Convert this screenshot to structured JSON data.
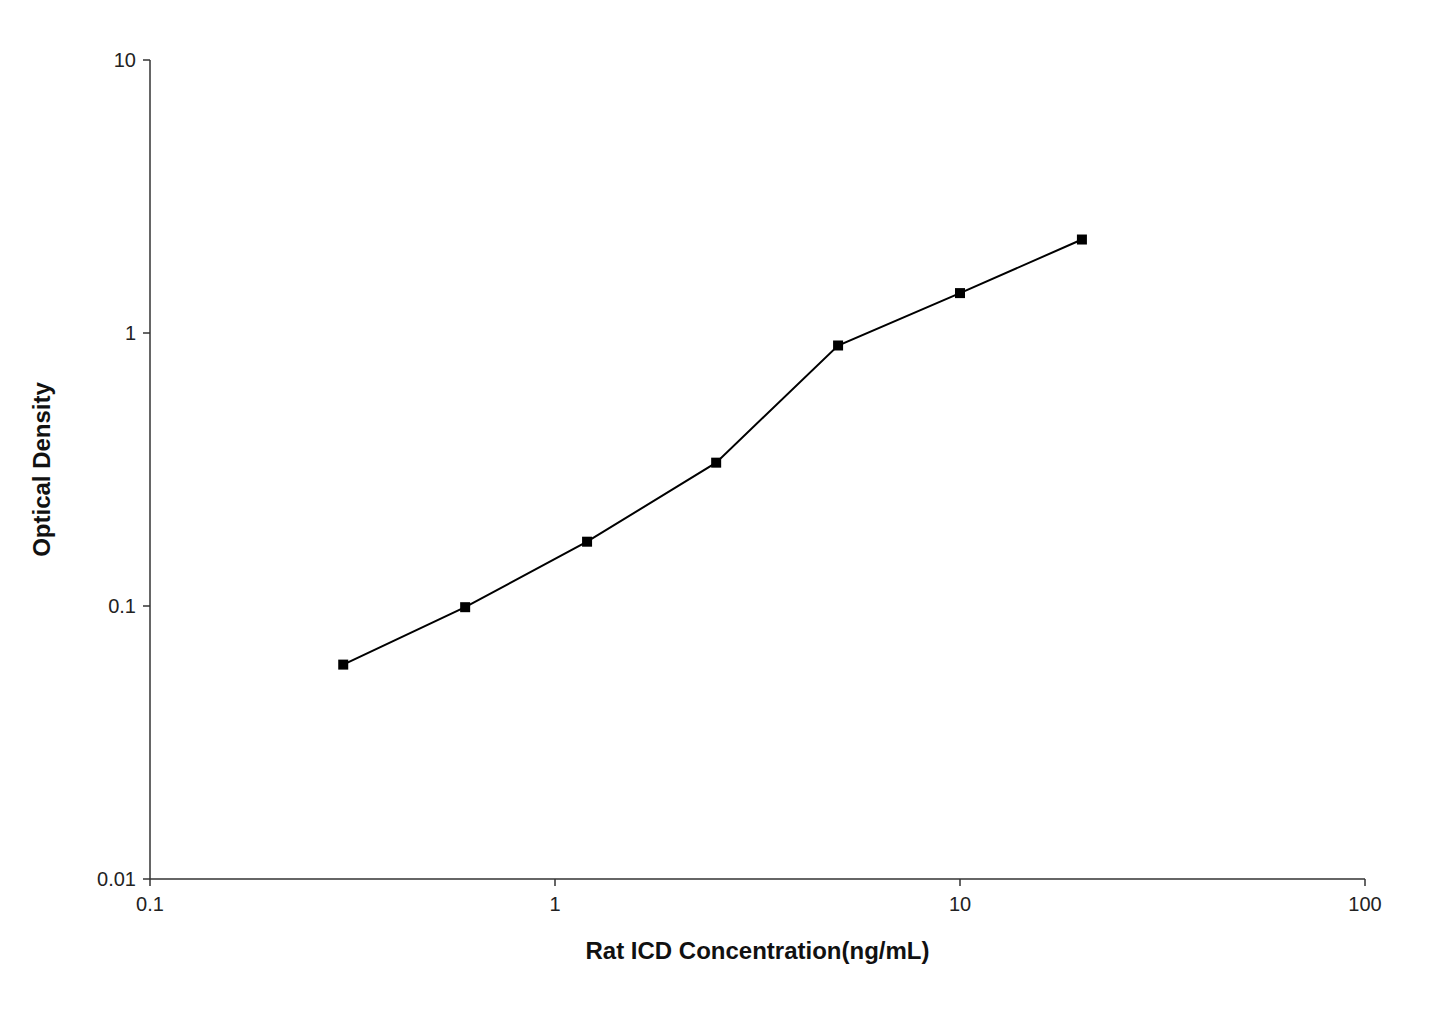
{
  "chart_data": {
    "type": "line",
    "xlabel": "Rat ICD Concentration(ng/mL)",
    "ylabel": "Optical Density",
    "x": [
      0.3,
      0.6,
      1.2,
      2.5,
      5.0,
      10.0,
      20.0
    ],
    "values": [
      0.061,
      0.099,
      0.172,
      0.335,
      0.9,
      1.4,
      2.2
    ],
    "color": "#000000",
    "marker": "square",
    "log": true,
    "grid": false,
    "xlim": [
      0.1,
      100
    ],
    "ylim": [
      0.01,
      10
    ],
    "xticks": [
      0.1,
      1,
      10,
      100
    ],
    "yticks": [
      0.01,
      0.1,
      1,
      10
    ]
  }
}
